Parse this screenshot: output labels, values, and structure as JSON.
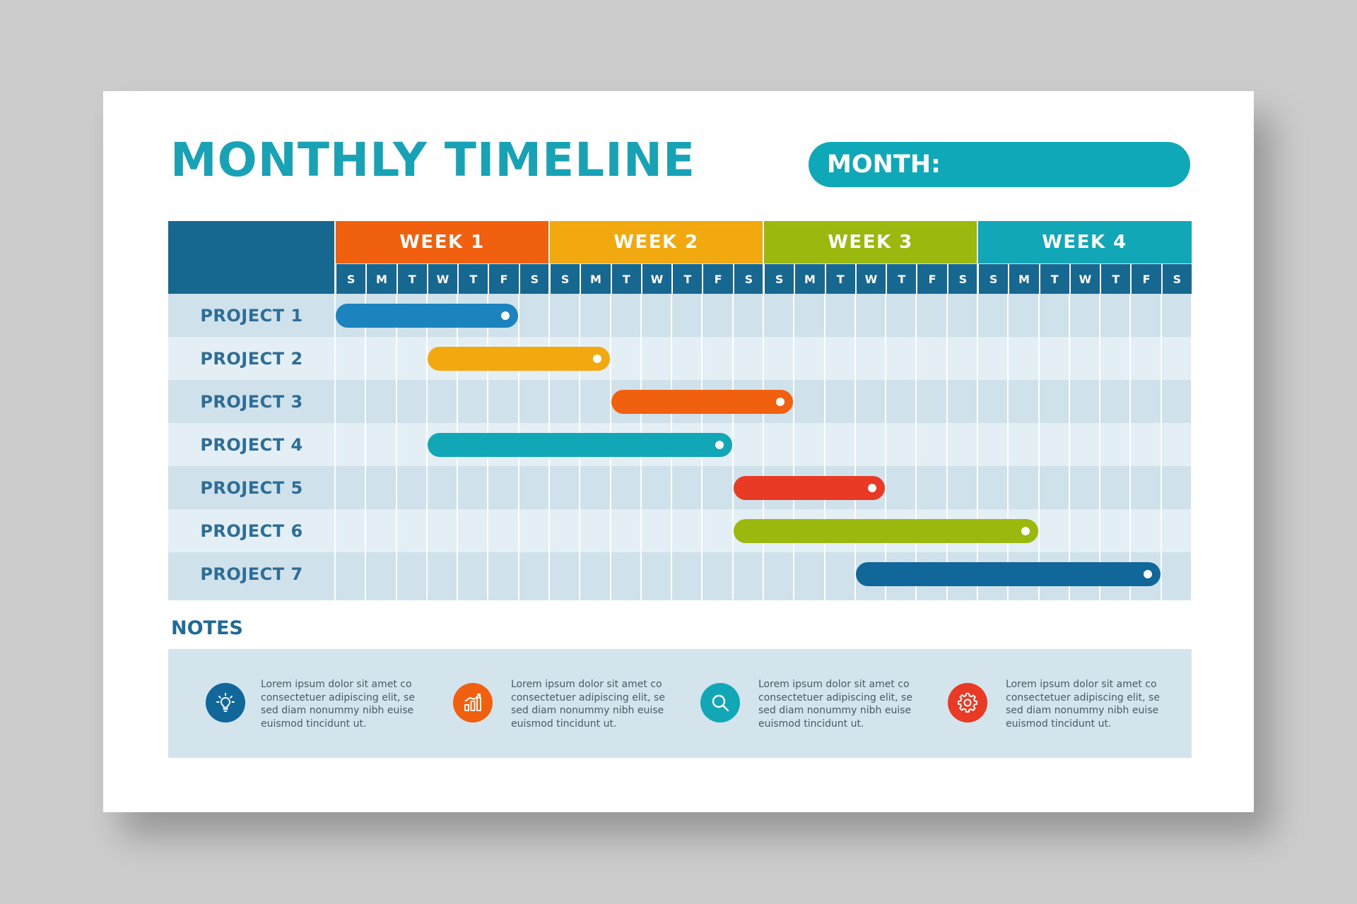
{
  "title": "MONTHLY TIMELINE",
  "month_label": "MONTH:",
  "weeks": [
    {
      "label": "WEEK 1",
      "color": "#f0600f"
    },
    {
      "label": "WEEK 2",
      "color": "#f2a80f"
    },
    {
      "label": "WEEK 3",
      "color": "#9bb80f"
    },
    {
      "label": "WEEK 4",
      "color": "#11a7b6"
    }
  ],
  "days": [
    "S",
    "M",
    "T",
    "W",
    "T",
    "F",
    "S",
    "S",
    "M",
    "T",
    "W",
    "T",
    "F",
    "S",
    "S",
    "M",
    "T",
    "W",
    "T",
    "F",
    "S",
    "S",
    "M",
    "T",
    "W",
    "T",
    "F",
    "S"
  ],
  "projects": [
    {
      "label": "PROJECT 1",
      "color": "#1b84bf",
      "start_day": 1,
      "end_day": 6
    },
    {
      "label": "PROJECT 2",
      "color": "#f2a80f",
      "start_day": 4,
      "end_day": 9
    },
    {
      "label": "PROJECT 3",
      "color": "#f0600f",
      "start_day": 10,
      "end_day": 15
    },
    {
      "label": "PROJECT 4",
      "color": "#11a7b6",
      "start_day": 4,
      "end_day": 13
    },
    {
      "label": "PROJECT 5",
      "color": "#e83a25",
      "start_day": 14,
      "end_day": 18
    },
    {
      "label": "PROJECT 6",
      "color": "#9bb80f",
      "start_day": 14,
      "end_day": 23
    },
    {
      "label": "PROJECT 7",
      "color": "#12679a",
      "start_day": 18,
      "end_day": 27
    }
  ],
  "notes_heading": "NOTES",
  "notes": [
    {
      "icon": "lightbulb-icon",
      "color": "#12679a",
      "text": "Lorem ipsum dolor sit amet co consectetuer adipiscing elit, se sed diam nonummy nibh euise euismod tincidunt ut."
    },
    {
      "icon": "bar-chart-icon",
      "color": "#f0600f",
      "text": "Lorem ipsum dolor sit amet co consectetuer adipiscing elit, se sed diam nonummy nibh euise euismod tincidunt ut."
    },
    {
      "icon": "search-icon",
      "color": "#11a7b6",
      "text": "Lorem ipsum dolor sit amet co consectetuer adipiscing elit, se sed diam nonummy nibh euise euismod tincidunt ut."
    },
    {
      "icon": "gear-icon",
      "color": "#e83a25",
      "text": "Lorem ipsum dolor sit amet co consectetuer adipiscing elit, se sed diam nonummy nibh euise euismod tincidunt ut."
    }
  ]
}
